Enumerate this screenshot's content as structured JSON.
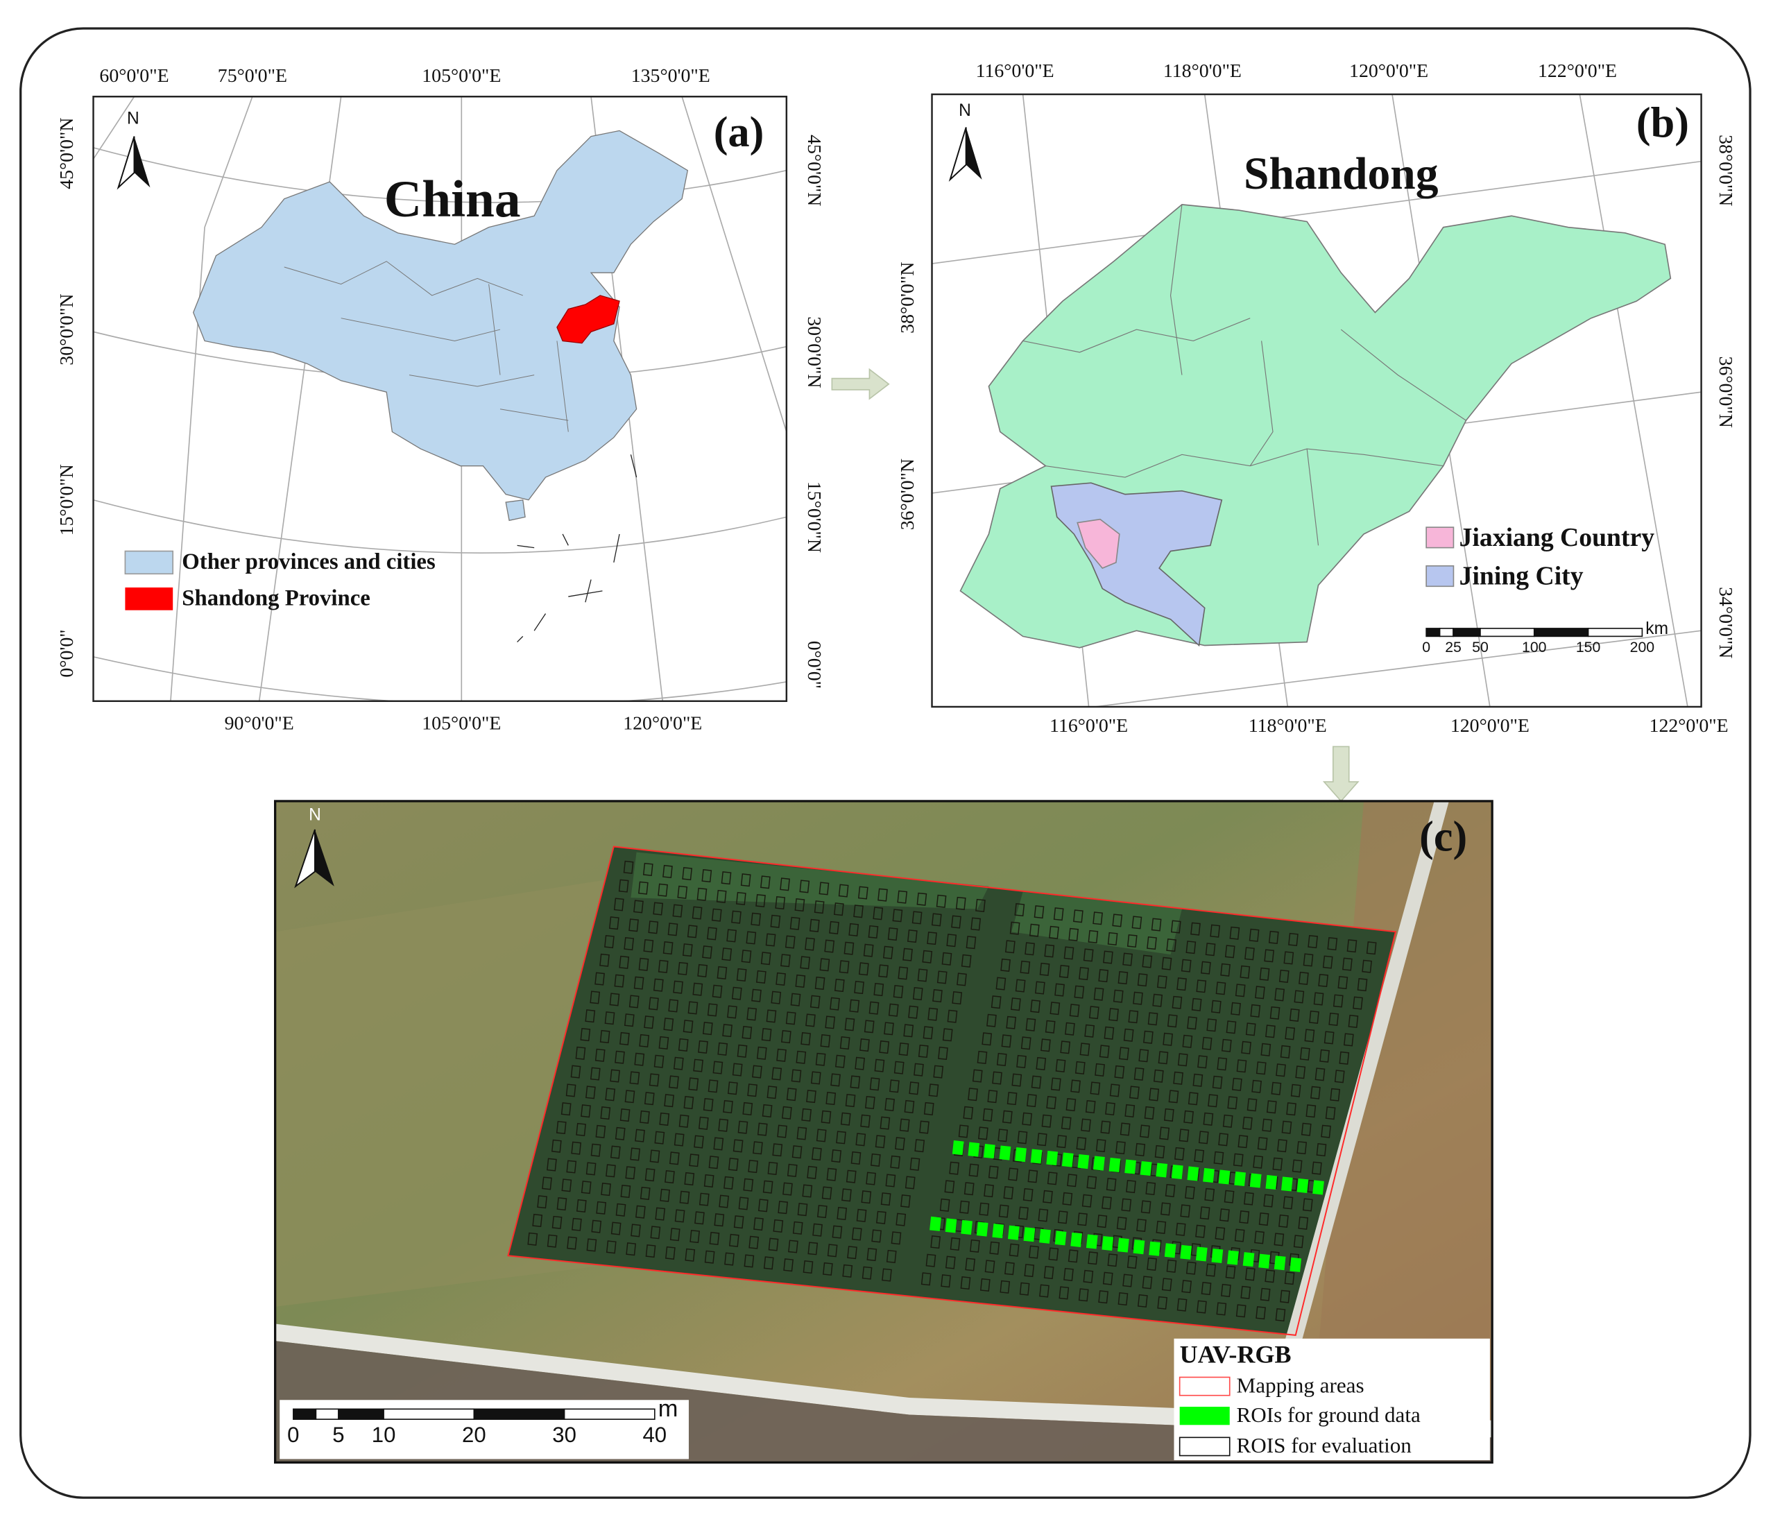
{
  "panel_a": {
    "label": "(a)",
    "title": "China",
    "north": "N",
    "top_lon_labels": [
      "60°0'0\"E",
      "75°0'0\"E",
      "105°0'0\"E",
      "135°0'0\"E"
    ],
    "bottom_lon_labels": [
      "90°0'0\"E",
      "105°0'0\"E",
      "120°0'0\"E"
    ],
    "left_lat_labels": [
      "45°0'0\"N",
      "30°0'0\"N",
      "15°0'0\"N",
      "0°0'0\""
    ],
    "right_lat_labels": [
      "45°0'0\"N",
      "30°0'0\"N",
      "15°0'0\"N",
      "0°0'0\""
    ],
    "legend": [
      "Other provinces and cities",
      "Shandong Province"
    ]
  },
  "panel_b": {
    "label": "(b)",
    "title": "Shandong",
    "north": "N",
    "top_lon_labels": [
      "116°0'0\"E",
      "118°0'0\"E",
      "120°0'0\"E",
      "122°0'0\"E"
    ],
    "bottom_lon_labels": [
      "116°0'0\"E",
      "118°0'0\"E",
      "120°0'0\"E",
      "122°0'0\"E"
    ],
    "left_lat_labels": [
      "38°0'0\"N",
      "36°0'0\"N"
    ],
    "right_lat_labels": [
      "38°0'0\"N",
      "36°0'0\"N",
      "34°0'0\"N"
    ],
    "legend": [
      "Jiaxiang Country",
      "Jining City"
    ],
    "scale_unit": "km",
    "scale_labels": [
      0,
      25,
      50,
      100,
      150,
      200
    ]
  },
  "panel_c": {
    "label": "(c)",
    "north": "N",
    "scale_unit": "m",
    "scale_labels": [
      0,
      5,
      10,
      20,
      30,
      40
    ],
    "legend_title": "UAV-RGB",
    "legend": [
      "Mapping areas",
      "ROIs for ground data",
      "ROIS for evaluation"
    ]
  }
}
